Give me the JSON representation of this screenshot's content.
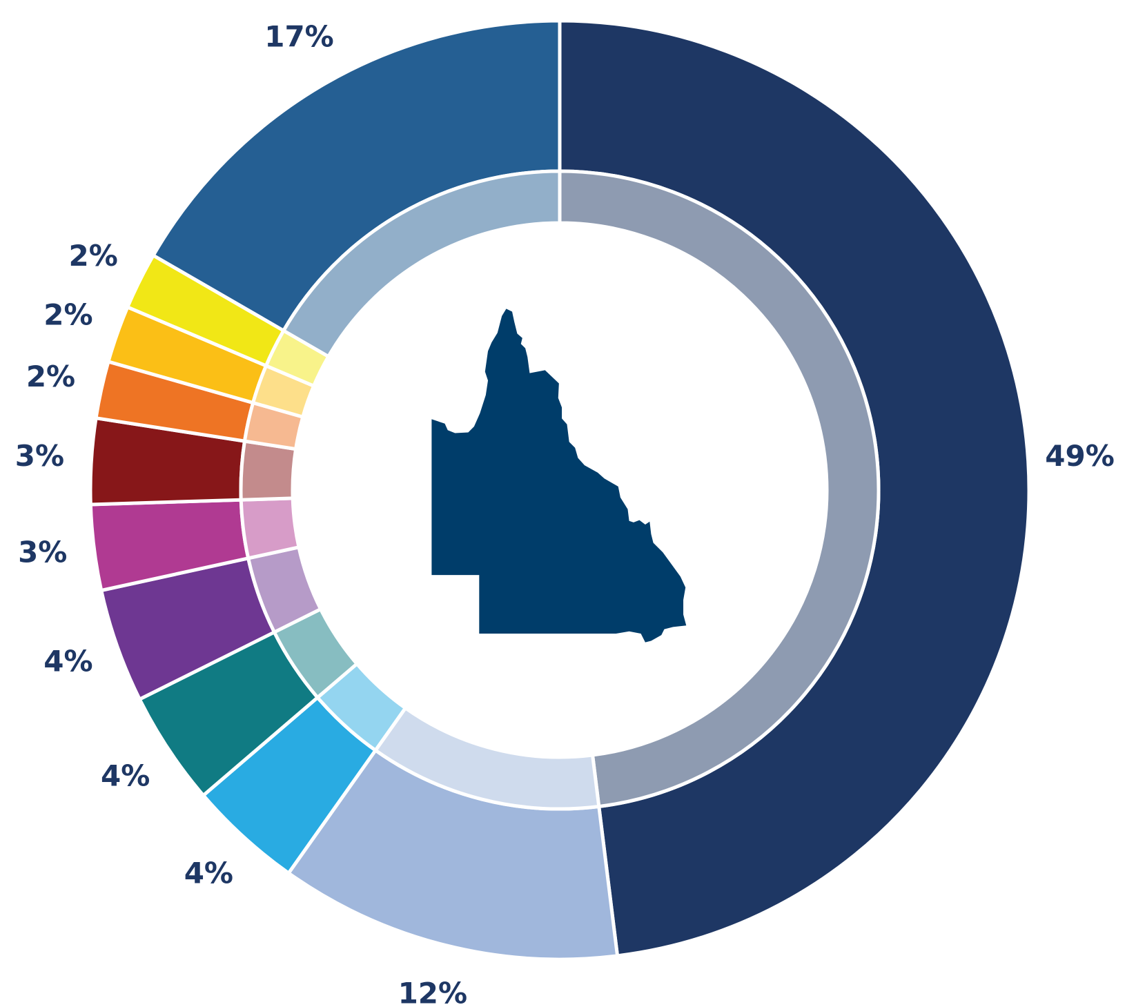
{
  "chart_data": {
    "type": "donut",
    "values": [
      49,
      12,
      4,
      4,
      4,
      3,
      3,
      2,
      2,
      2,
      17
    ],
    "value_labels": [
      "49%",
      "12%",
      "4%",
      "4%",
      "4%",
      "3%",
      "3%",
      "2%",
      "2%",
      "2%",
      "17%"
    ],
    "colors": [
      "#1e3764",
      "#a0b7dc",
      "#29abe2",
      "#107b83",
      "#6e3792",
      "#b03a92",
      "#871719",
      "#ee7424",
      "#fbbf16",
      "#f1e716",
      "#255f93"
    ],
    "label_color": "#1e3764"
  }
}
